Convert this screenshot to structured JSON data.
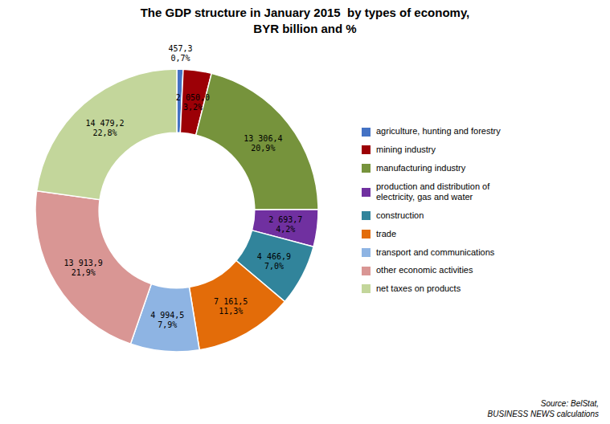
{
  "chart_data": {
    "type": "donut",
    "title": "The GDP structure in January 2015  by types of economy,\nBYR billion and %",
    "categories": [
      "agriculture, hunting and forestry",
      "mining industry",
      "manufacturing industry",
      "production and distribution of\nelectricity, gas and water",
      "construction",
      "trade",
      "transport and communications",
      "other economic activities",
      "net taxes on products"
    ],
    "values": [
      457.3,
      2050.0,
      13306.4,
      2693.7,
      4466.9,
      7161.5,
      4994.5,
      13913.9,
      14479.2
    ],
    "value_labels": [
      "457,3",
      "2 050,0",
      "13 306,4",
      "2 693,7",
      "4 466,9",
      "7 161,5",
      "4 994,5",
      "13 913,9",
      "14 479,2"
    ],
    "shares": [
      0.7,
      3.2,
      20.9,
      4.2,
      7.0,
      11.3,
      7.9,
      21.9,
      22.8
    ],
    "share_labels": [
      "0,7%",
      "3,2%",
      "20,9%",
      "4,2%",
      "7,0%",
      "11,3%",
      "7,9%",
      "21,9%",
      "22,8%"
    ],
    "colors": [
      "#4472c4",
      "#9c0006",
      "#76933c",
      "#7030a0",
      "#31849b",
      "#e36c09",
      "#8eb4e3",
      "#d99694",
      "#c3d69b"
    ],
    "data_labels": true,
    "legend": "right",
    "annotations": [
      "Source: BelStat,\nBUSINESS NEWS calculations"
    ]
  }
}
